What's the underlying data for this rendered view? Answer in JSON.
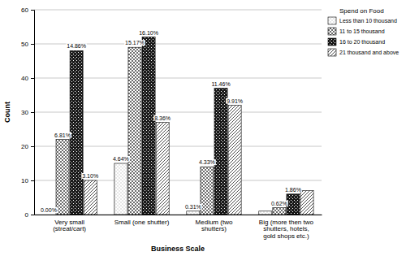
{
  "chart_data": {
    "type": "bar",
    "x_label": "Business Scale",
    "y_label": "Count",
    "legend_title": "Spend on Food",
    "legend": "top-right",
    "grid": true,
    "categories": [
      "Very small (streat/cart)",
      "Small (one shutter)",
      "Medium (two shutters)",
      "Big (more then two shutters, hotels, gold shops etc.)"
    ],
    "ylim": [
      0,
      60
    ],
    "yticks": [
      0,
      10,
      20,
      30,
      40,
      50,
      60
    ],
    "series": [
      {
        "name": "Less than 10 thousand",
        "color": "#bdbdbd",
        "values": [
          0,
          15,
          1,
          1
        ],
        "percent_labels": [
          "0.00%",
          "4.64%",
          "0.31%",
          null
        ]
      },
      {
        "name": "11 to 15 thousand",
        "color": "#6e6e6e",
        "values": [
          22,
          49,
          14,
          2
        ],
        "percent_labels": [
          "6.81%",
          "15.17%",
          "4.33%",
          "0.62%"
        ]
      },
      {
        "name": "16 to 20 thousand",
        "color": "#1a1a1a",
        "values": [
          48,
          52,
          37,
          6
        ],
        "percent_labels": [
          "14.86%",
          "16.10%",
          "11.46%",
          "1.86%"
        ]
      },
      {
        "name": "21 thousand and above",
        "color": "#4d4d4d",
        "values": [
          10,
          27,
          32,
          7
        ],
        "percent_labels": [
          "3.10%",
          "8.36%",
          "9.91%",
          null
        ]
      }
    ]
  }
}
